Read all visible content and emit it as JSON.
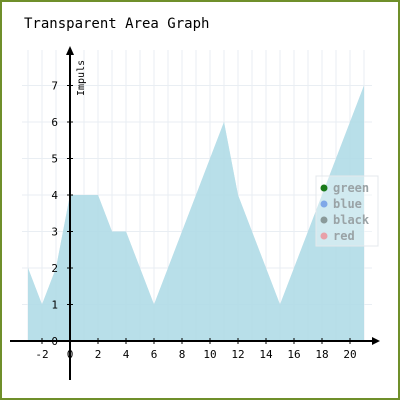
{
  "chart_data": {
    "type": "area",
    "title": "Transparent Area Graph",
    "ylabel": "Impuls",
    "xlabel": "",
    "x": [
      -3,
      -2,
      -1,
      0,
      1,
      2,
      3,
      4,
      5,
      6,
      7,
      8,
      9,
      10,
      11,
      12,
      13,
      14,
      15,
      16,
      17,
      18,
      19,
      20,
      21
    ],
    "series": [
      {
        "name": "green",
        "color": "#1a7a1a",
        "values": [
          2,
          1,
          2,
          4,
          4,
          4,
          3,
          3,
          2,
          1,
          2,
          3,
          4,
          5,
          6,
          4,
          3,
          2,
          1,
          2,
          3,
          4,
          5,
          6,
          7
        ]
      },
      {
        "name": "blue",
        "color": "#7fa8e8",
        "values": [
          2,
          1,
          2,
          4,
          4,
          4,
          3,
          3,
          2,
          1,
          2,
          3,
          4,
          5,
          6,
          4,
          3,
          2,
          1,
          2,
          3,
          4,
          5,
          6,
          7
        ]
      },
      {
        "name": "black",
        "color": "#8a9a9a",
        "values": [
          2,
          1,
          2,
          4,
          4,
          4,
          3,
          3,
          2,
          1,
          2,
          3,
          4,
          5,
          6,
          4,
          3,
          2,
          1,
          2,
          3,
          4,
          5,
          6,
          7
        ]
      },
      {
        "name": "red",
        "color": "#e8a0a8",
        "values": [
          2,
          1,
          2,
          4,
          4,
          4,
          3,
          3,
          2,
          1,
          2,
          3,
          4,
          5,
          6,
          4,
          3,
          2,
          1,
          2,
          3,
          4,
          5,
          6,
          7
        ]
      }
    ],
    "area_fill": "#b0dbe6",
    "xlim": [
      -3,
      21
    ],
    "ylim": [
      0,
      7
    ],
    "xticks": [
      -2,
      0,
      2,
      4,
      6,
      8,
      10,
      12,
      14,
      16,
      18,
      20
    ],
    "yticks": [
      0,
      1,
      2,
      3,
      4,
      5,
      6,
      7
    ],
    "grid": true,
    "legend_position": "right"
  }
}
